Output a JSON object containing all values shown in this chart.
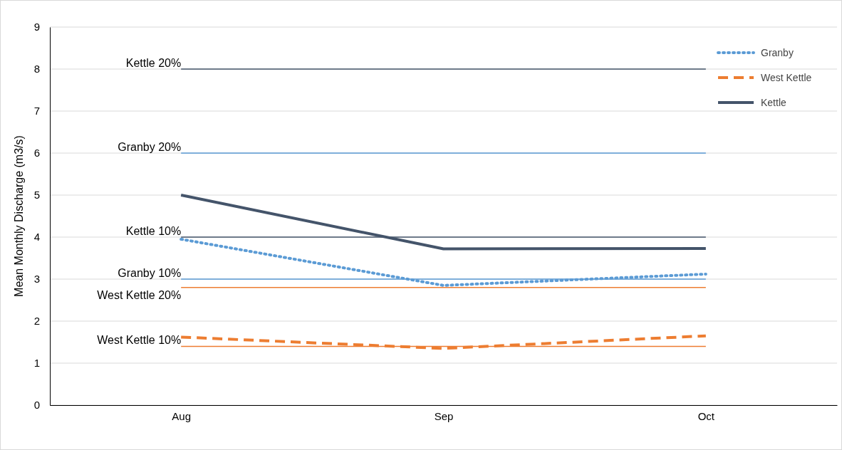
{
  "chart_data": {
    "type": "line",
    "ylabel": "Mean Monthly Discharge (m3/s)",
    "categories": [
      "Aug",
      "Sep",
      "Oct"
    ],
    "ylim": [
      0,
      9
    ],
    "yticks": [
      0,
      1,
      2,
      3,
      4,
      5,
      6,
      7,
      8,
      9
    ],
    "grid": "y",
    "legend": "top right",
    "marker": "none",
    "series": [
      {
        "name": "Granby",
        "color": "#5b9bd5",
        "line_style": "dotted",
        "values": [
          3.95,
          2.85,
          3.12
        ]
      },
      {
        "name": "West Kettle",
        "color": "#ed7d31",
        "line_style": "dashed",
        "values": [
          1.62,
          1.35,
          1.65
        ]
      },
      {
        "name": "Kettle",
        "color": "#44546a",
        "line_style": "solid",
        "values": [
          5.0,
          3.72,
          3.73
        ]
      }
    ],
    "ref_lines": [
      {
        "axis": "y",
        "value": 8,
        "label": "Kettle 20%",
        "color": "#44546a"
      },
      {
        "axis": "y",
        "value": 6,
        "label": "Granby 20%",
        "color": "#5b9bd5"
      },
      {
        "axis": "y",
        "value": 4,
        "label": "Kettle 10%",
        "color": "#44546a"
      },
      {
        "axis": "y",
        "value": 3,
        "label": "Granby 10%",
        "color": "#5b9bd5"
      },
      {
        "axis": "y",
        "value": 2.8,
        "label": "West Kettle 20%",
        "color": "#ed7d31"
      },
      {
        "axis": "y",
        "value": 1.4,
        "label": "West Kettle 10%",
        "color": "#ed7d31"
      }
    ]
  }
}
